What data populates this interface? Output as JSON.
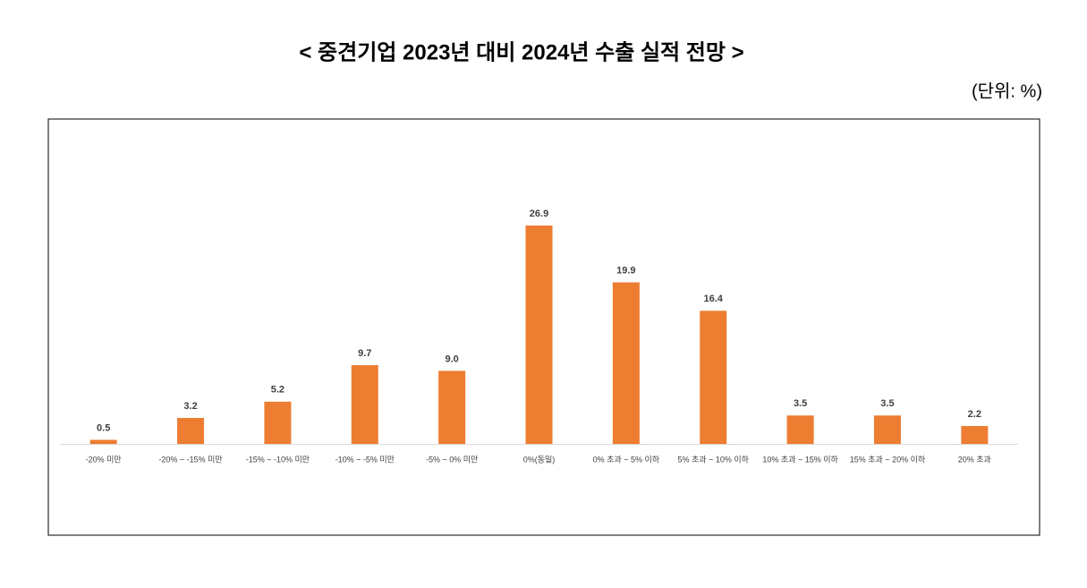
{
  "chart_data": {
    "type": "bar",
    "title": "< 중견기업 2023년 대비 2024년 수출 실적 전망 >",
    "subtitle": "(단위: %)",
    "categories": [
      "-20% 미만",
      "-20% ~ -15% 미만",
      "-15% ~ -10% 미만",
      "-10% ~ -5% 미만",
      "-5% ~ 0% 미만",
      "0%(동일)",
      "0% 초과 ~ 5% 이하",
      "5% 초과 ~ 10% 이하",
      "10% 초과 ~ 15% 이하",
      "15% 초과 ~ 20% 이하",
      "20% 초과"
    ],
    "values": [
      0.5,
      3.2,
      5.2,
      9.7,
      9.0,
      26.9,
      19.9,
      16.4,
      3.5,
      3.5,
      2.2
    ],
    "value_labels": [
      "0.5",
      "3.2",
      "5.2",
      "9.7",
      "9.0",
      "26.9",
      "19.9",
      "16.4",
      "3.5",
      "3.5",
      "2.2"
    ],
    "color": "#ed7d31"
  }
}
